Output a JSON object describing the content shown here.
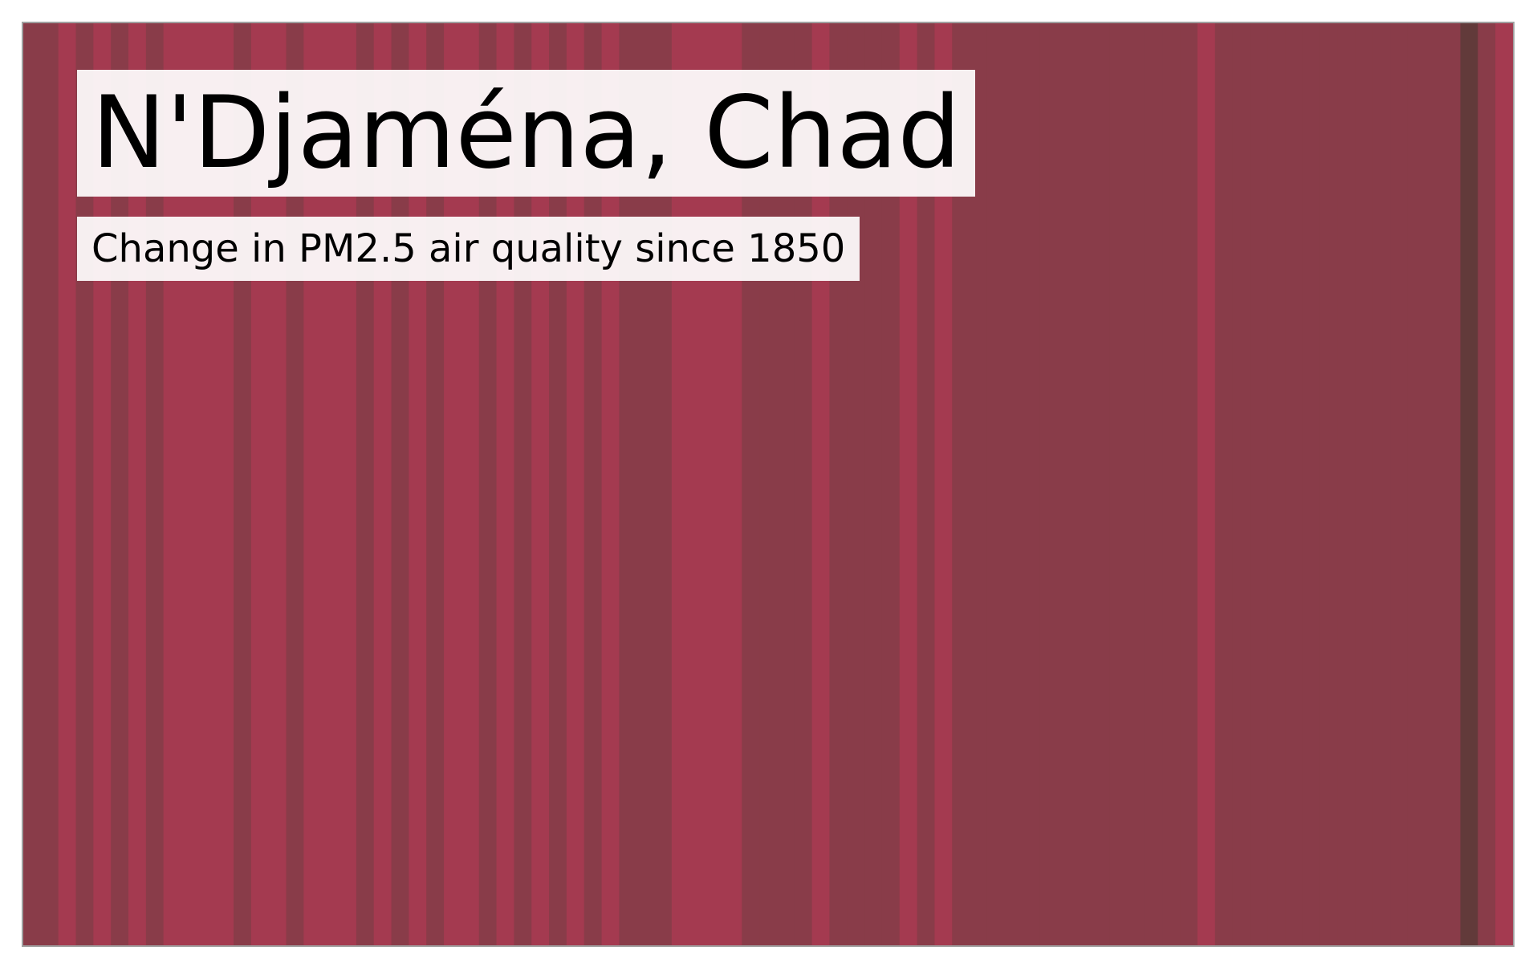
{
  "chart_data": {
    "type": "bar",
    "title": "N'Djaména, Chad",
    "subtitle": "Change in PM2.5 air quality since 1850",
    "xlabel": "",
    "ylabel": "",
    "legend": "none",
    "grid": false,
    "colors": {
      "low": "#a43a50",
      "mid": "#893c49",
      "high": "#623a3a"
    },
    "stripe_levels": [
      1,
      1,
      0,
      1,
      0,
      1,
      0,
      1,
      0,
      0,
      0,
      0,
      1,
      0,
      0,
      1,
      0,
      0,
      0,
      1,
      0,
      1,
      0,
      1,
      0,
      0,
      1,
      0,
      1,
      0,
      1,
      0,
      1,
      0,
      1,
      1,
      1,
      0,
      0,
      0,
      0,
      1,
      1,
      1,
      1,
      0,
      1,
      1,
      1,
      1,
      0,
      1,
      0,
      1,
      1,
      1,
      1,
      1,
      1,
      1,
      1,
      1,
      1,
      1,
      1,
      1,
      1,
      0,
      1,
      1,
      1,
      1,
      1,
      1,
      1,
      1,
      1,
      1,
      1,
      1,
      1,
      1,
      2,
      1,
      0
    ]
  }
}
